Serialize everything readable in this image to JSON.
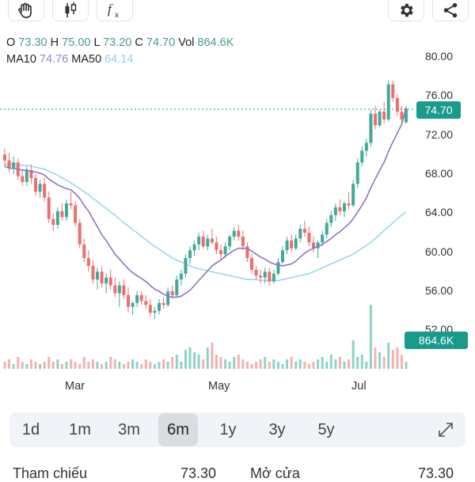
{
  "toolbar": {
    "left_icons": [
      "drag-hand-icon",
      "candlestick-type-icon",
      "function-indicator-icon"
    ],
    "right_icons": [
      "settings-gear-icon",
      "share-icon"
    ]
  },
  "ohlc": {
    "o_label": "O",
    "o": "73.30",
    "h_label": "H",
    "h": "75.00",
    "l_label": "L",
    "l": "73.20",
    "c_label": "C",
    "c": "74.70",
    "vol_label": "Vol",
    "vol": "864.6K"
  },
  "ma": {
    "ma10_label": "MA10",
    "ma10": "74.76",
    "ma50_label": "MA50",
    "ma50": "64.14"
  },
  "price_tag": "74.70",
  "volume_tag": "864.6K",
  "colors": {
    "up": "#41a99a",
    "down": "#ec6f6f",
    "ma10": "#8e74be",
    "ma50": "#9bd6ee",
    "volume_up": "#8ed3c8",
    "volume_down": "#f5b1b1",
    "accent": "#199b8b"
  },
  "chart_data": {
    "type": "candlestick",
    "y_ticks": [
      "80.00",
      "76.00",
      "72.00",
      "68.00",
      "64.00",
      "60.00",
      "56.00",
      "52.00"
    ],
    "ylim": [
      51,
      81
    ],
    "x_labels": [
      "Mar",
      "May",
      "Jul"
    ],
    "current_price": 74.7,
    "ma10_end": 74.76,
    "ma50_end": 64.14,
    "last_volume": "864.6K",
    "candles": [
      [
        70.0,
        70.6,
        68.8,
        69.4
      ],
      [
        69.4,
        70.2,
        68.2,
        68.6
      ],
      [
        68.6,
        69.8,
        68.0,
        69.2
      ],
      [
        69.2,
        69.6,
        67.4,
        67.8
      ],
      [
        67.8,
        68.4,
        66.8,
        67.2
      ],
      [
        67.2,
        68.8,
        66.8,
        68.4
      ],
      [
        68.4,
        69.0,
        67.0,
        67.6
      ],
      [
        67.6,
        68.0,
        65.8,
        66.2
      ],
      [
        66.2,
        67.4,
        65.6,
        67.0
      ],
      [
        67.0,
        67.6,
        65.2,
        65.6
      ],
      [
        65.6,
        66.2,
        63.0,
        63.4
      ],
      [
        63.4,
        64.0,
        62.2,
        62.8
      ],
      [
        62.8,
        64.6,
        62.4,
        64.2
      ],
      [
        64.2,
        65.0,
        63.2,
        63.6
      ],
      [
        63.6,
        65.4,
        63.2,
        65.0
      ],
      [
        65.0,
        66.2,
        64.4,
        64.8
      ],
      [
        64.8,
        65.2,
        62.6,
        63.0
      ],
      [
        63.0,
        63.4,
        60.4,
        60.8
      ],
      [
        60.8,
        61.4,
        59.0,
        59.4
      ],
      [
        59.4,
        60.2,
        58.0,
        58.6
      ],
      [
        58.6,
        59.2,
        56.8,
        57.2
      ],
      [
        57.2,
        58.4,
        56.2,
        58.0
      ],
      [
        58.0,
        58.6,
        56.4,
        56.8
      ],
      [
        56.8,
        57.8,
        55.8,
        57.4
      ],
      [
        57.4,
        58.2,
        56.2,
        56.6
      ],
      [
        56.6,
        57.4,
        55.4,
        55.8
      ],
      [
        55.8,
        57.0,
        54.4,
        56.6
      ],
      [
        56.6,
        57.2,
        55.2,
        55.6
      ],
      [
        55.6,
        56.4,
        53.8,
        54.4
      ],
      [
        54.4,
        55.0,
        53.6,
        54.8
      ],
      [
        54.8,
        56.0,
        54.4,
        55.6
      ],
      [
        55.6,
        56.0,
        54.6,
        55.0
      ],
      [
        55.0,
        55.6,
        54.2,
        54.6
      ],
      [
        54.6,
        55.2,
        53.4,
        53.8
      ],
      [
        53.8,
        54.4,
        53.2,
        54.0
      ],
      [
        54.0,
        55.2,
        53.6,
        54.8
      ],
      [
        54.8,
        55.4,
        54.2,
        54.6
      ],
      [
        54.6,
        56.4,
        54.4,
        56.0
      ],
      [
        56.0,
        56.6,
        55.2,
        55.6
      ],
      [
        55.6,
        57.6,
        55.4,
        57.2
      ],
      [
        57.2,
        58.2,
        56.6,
        57.8
      ],
      [
        57.8,
        59.8,
        57.4,
        59.4
      ],
      [
        59.4,
        60.6,
        58.8,
        60.2
      ],
      [
        60.2,
        61.2,
        59.6,
        60.8
      ],
      [
        60.8,
        62.0,
        60.2,
        61.6
      ],
      [
        61.6,
        62.2,
        60.4,
        60.6
      ],
      [
        60.6,
        61.8,
        60.2,
        61.4
      ],
      [
        61.4,
        62.4,
        60.8,
        61.0
      ],
      [
        61.0,
        61.6,
        59.8,
        60.2
      ],
      [
        60.2,
        60.8,
        59.2,
        59.8
      ],
      [
        59.8,
        61.0,
        59.4,
        60.6
      ],
      [
        60.6,
        61.8,
        60.2,
        61.6
      ],
      [
        61.6,
        62.6,
        61.2,
        62.2
      ],
      [
        62.2,
        62.8,
        61.2,
        61.6
      ],
      [
        61.6,
        62.2,
        60.2,
        60.6
      ],
      [
        60.6,
        61.0,
        59.0,
        59.4
      ],
      [
        59.4,
        59.8,
        57.8,
        58.2
      ],
      [
        58.2,
        58.6,
        57.2,
        57.6
      ],
      [
        57.6,
        58.2,
        56.8,
        57.4
      ],
      [
        57.4,
        58.4,
        56.8,
        58.0
      ],
      [
        58.0,
        58.4,
        56.6,
        57.0
      ],
      [
        57.0,
        58.2,
        56.8,
        57.8
      ],
      [
        57.8,
        59.4,
        57.6,
        59.0
      ],
      [
        59.0,
        60.6,
        58.8,
        60.2
      ],
      [
        60.2,
        61.6,
        59.8,
        61.2
      ],
      [
        61.2,
        61.8,
        60.0,
        60.4
      ],
      [
        60.4,
        61.8,
        60.2,
        61.4
      ],
      [
        61.4,
        62.8,
        61.0,
        62.4
      ],
      [
        62.4,
        63.2,
        61.6,
        62.0
      ],
      [
        62.0,
        62.6,
        60.6,
        61.0
      ],
      [
        61.0,
        61.6,
        60.0,
        60.4
      ],
      [
        60.4,
        61.2,
        59.4,
        61.0
      ],
      [
        61.0,
        62.2,
        60.6,
        61.8
      ],
      [
        61.8,
        63.4,
        61.4,
        63.0
      ],
      [
        63.0,
        64.2,
        62.6,
        63.8
      ],
      [
        63.8,
        65.0,
        63.2,
        64.6
      ],
      [
        64.6,
        65.4,
        63.8,
        64.2
      ],
      [
        64.2,
        65.2,
        63.6,
        65.0
      ],
      [
        65.0,
        66.2,
        64.4,
        64.8
      ],
      [
        64.8,
        67.4,
        64.6,
        67.0
      ],
      [
        67.0,
        69.6,
        66.6,
        69.2
      ],
      [
        69.2,
        70.8,
        68.8,
        70.4
      ],
      [
        70.4,
        71.6,
        69.8,
        71.2
      ],
      [
        71.2,
        74.6,
        70.8,
        74.2
      ],
      [
        74.2,
        75.0,
        72.6,
        73.0
      ],
      [
        73.0,
        74.6,
        72.8,
        74.4
      ],
      [
        74.4,
        75.4,
        73.2,
        73.6
      ],
      [
        73.6,
        77.6,
        73.4,
        77.2
      ],
      [
        77.2,
        77.6,
        75.4,
        75.8
      ],
      [
        75.8,
        76.2,
        74.0,
        74.4
      ],
      [
        74.4,
        75.0,
        73.2,
        73.6
      ],
      [
        73.3,
        75.0,
        73.2,
        74.7
      ]
    ],
    "ma10": [
      68.8,
      68.6,
      68.6,
      68.5,
      68.4,
      68.4,
      68.3,
      68.2,
      68.1,
      67.9,
      67.5,
      67.2,
      66.9,
      66.7,
      66.5,
      66.4,
      66.0,
      65.5,
      64.8,
      64.2,
      63.4,
      62.6,
      61.8,
      61.2,
      60.5,
      59.8,
      59.3,
      58.8,
      58.3,
      57.9,
      57.6,
      57.3,
      57.0,
      56.6,
      56.2,
      56.0,
      55.7,
      55.5,
      55.4,
      55.4,
      55.5,
      55.8,
      56.1,
      56.6,
      57.1,
      57.6,
      58.1,
      58.6,
      58.9,
      59.2,
      59.6,
      59.9,
      60.2,
      60.4,
      60.4,
      60.4,
      60.1,
      59.8,
      59.5,
      59.3,
      59.0,
      58.8,
      58.7,
      58.6,
      58.7,
      58.8,
      59.1,
      59.5,
      59.9,
      60.2,
      60.4,
      60.6,
      60.8,
      61.1,
      61.4,
      61.8,
      62.1,
      62.5,
      62.9,
      63.4,
      64.1,
      64.8,
      65.6,
      66.6,
      67.5,
      68.4,
      69.2,
      70.3,
      71.3,
      72.2,
      73.1,
      74.76
    ],
    "ma50": [
      69.0,
      69.0,
      69.0,
      69.0,
      68.9,
      68.9,
      68.8,
      68.7,
      68.6,
      68.5,
      68.3,
      68.1,
      67.9,
      67.6,
      67.4,
      67.1,
      66.8,
      66.5,
      66.2,
      65.9,
      65.5,
      65.2,
      64.8,
      64.5,
      64.1,
      63.8,
      63.4,
      63.0,
      62.7,
      62.3,
      62.0,
      61.6,
      61.3,
      60.9,
      60.6,
      60.3,
      60.0,
      59.7,
      59.4,
      59.2,
      59.0,
      58.8,
      58.6,
      58.4,
      58.3,
      58.2,
      58.1,
      58.0,
      57.9,
      57.8,
      57.7,
      57.6,
      57.5,
      57.4,
      57.3,
      57.2,
      57.2,
      57.2,
      57.1,
      57.1,
      57.1,
      57.1,
      57.1,
      57.2,
      57.3,
      57.4,
      57.5,
      57.6,
      57.7,
      57.8,
      58.0,
      58.2,
      58.4,
      58.6,
      58.8,
      59.0,
      59.2,
      59.4,
      59.6,
      59.8,
      60.1,
      60.4,
      60.7,
      61.0,
      61.4,
      61.8,
      62.2,
      62.6,
      63.0,
      63.4,
      63.8,
      64.14
    ],
    "volumes": [
      3,
      4,
      2,
      5,
      3,
      2,
      4,
      3,
      2,
      3,
      5,
      3,
      4,
      2,
      3,
      4,
      3,
      2,
      5,
      3,
      4,
      3,
      2,
      3,
      5,
      4,
      3,
      2,
      3,
      4,
      3,
      2,
      4,
      3,
      2,
      3,
      4,
      3,
      5,
      6,
      3,
      8,
      9,
      7,
      6,
      4,
      9,
      11,
      6,
      5,
      4,
      3,
      5,
      6,
      4,
      3,
      2,
      3,
      4,
      5,
      3,
      4,
      3,
      2,
      4,
      5,
      3,
      4,
      3,
      2,
      3,
      4,
      5,
      3,
      6,
      4,
      5,
      3,
      4,
      12,
      5,
      6,
      3,
      27,
      9,
      7,
      5,
      11,
      8,
      9,
      6,
      3
    ]
  },
  "range_selector": {
    "options": [
      "1d",
      "1m",
      "3m",
      "6m",
      "1y",
      "3y",
      "5y"
    ],
    "active": "6m",
    "expand_icon": "expand-diagonal-icon"
  },
  "info_row": {
    "ref_label": "Tham chiếu",
    "ref_value": "73.30",
    "open_label": "Mở cửa",
    "open_value": "73.30"
  }
}
